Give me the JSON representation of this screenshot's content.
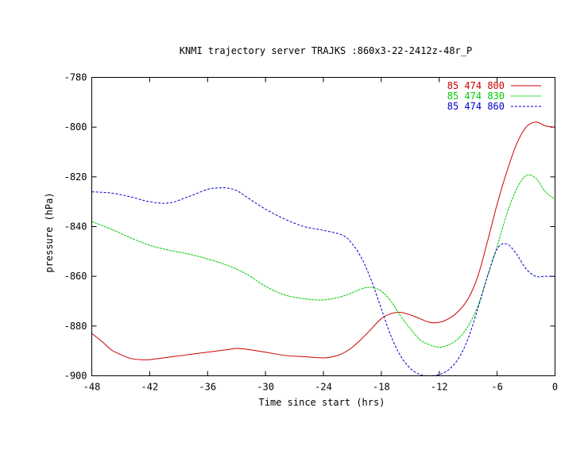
{
  "chart_data": {
    "type": "line",
    "title": "KNMI trajectory server TRAJKS :860x3-22-2412z-48r_P",
    "xlabel": "Time since start (hrs)",
    "ylabel": "pressure (hPa)",
    "xlim": [
      -48,
      0
    ],
    "ylim": [
      -900,
      -780
    ],
    "x_ticks": [
      -48,
      -42,
      -36,
      -30,
      -24,
      -18,
      -12,
      -6,
      0
    ],
    "x_tick_labels": [
      "-48",
      "-42",
      "-36",
      "-30",
      "-24",
      "-18",
      "-12",
      "-6",
      "0"
    ],
    "y_ticks": [
      -780,
      -800,
      -820,
      -840,
      -860,
      -880,
      -900
    ],
    "y_tick_labels": [
      "-780",
      "-800",
      "-820",
      "-840",
      "-860",
      "-880",
      "-900"
    ],
    "grid": false,
    "legend_position": "top-right",
    "series": [
      {
        "name": "85 474 800",
        "color": "#cc0000",
        "dash": "solid",
        "x": [
          -48,
          -47,
          -46,
          -45,
          -44,
          -43,
          -42,
          -40,
          -38,
          -36,
          -34,
          -33,
          -32,
          -30,
          -28,
          -26,
          -24,
          -23,
          -22,
          -21,
          -20,
          -19,
          -18,
          -17,
          -16,
          -15,
          -14,
          -13,
          -12,
          -11,
          -10,
          -9,
          -8,
          -7,
          -6,
          -5,
          -4,
          -3,
          -2,
          -1,
          0
        ],
        "y": [
          -883,
          -886,
          -889.5,
          -891.5,
          -893,
          -893.5,
          -893.5,
          -892.5,
          -891.5,
          -890.5,
          -889.5,
          -889,
          -889.3,
          -890.5,
          -891.8,
          -892.3,
          -892.8,
          -892.3,
          -891,
          -888.5,
          -885,
          -881,
          -877,
          -875,
          -874.5,
          -875.5,
          -877,
          -878.5,
          -878.5,
          -877,
          -874,
          -869,
          -860,
          -846,
          -831,
          -818,
          -807,
          -800,
          -798,
          -799.5,
          -800
        ]
      },
      {
        "name": "85 474 830",
        "color": "#00cc00",
        "dash": "fine",
        "x": [
          -48,
          -46,
          -44,
          -42,
          -40,
          -38,
          -36,
          -34,
          -32,
          -30,
          -28,
          -26,
          -24,
          -22,
          -20,
          -19,
          -18,
          -17,
          -16,
          -15,
          -14,
          -13,
          -12,
          -11,
          -10,
          -9,
          -8,
          -7,
          -6,
          -5,
          -4,
          -3,
          -2,
          -1,
          0
        ],
        "y": [
          -838,
          -841,
          -844.5,
          -847.5,
          -849.5,
          -851,
          -853,
          -855.5,
          -859,
          -864,
          -867.5,
          -869,
          -869.5,
          -868,
          -865,
          -864.5,
          -866,
          -870,
          -876,
          -881,
          -885.5,
          -887.5,
          -888.5,
          -887.5,
          -885,
          -880,
          -872,
          -860,
          -848,
          -835,
          -825,
          -819.5,
          -820.5,
          -826,
          -829
        ]
      },
      {
        "name": "85 474 860",
        "color": "#0000cc",
        "dash": "dash",
        "x": [
          -48,
          -46,
          -44,
          -42,
          -40,
          -38,
          -36,
          -35,
          -34,
          -33,
          -32,
          -30,
          -28,
          -26,
          -24,
          -22,
          -21,
          -20,
          -19,
          -18,
          -17,
          -16,
          -15,
          -14,
          -13,
          -12,
          -11,
          -10,
          -9,
          -8,
          -7,
          -6,
          -5,
          -4,
          -3,
          -2,
          -1,
          0
        ],
        "y": [
          -826,
          -826.5,
          -828,
          -830,
          -830.5,
          -828,
          -825,
          -824.5,
          -824.5,
          -825.5,
          -828,
          -833,
          -837,
          -840,
          -841.5,
          -843.5,
          -847,
          -853,
          -862,
          -873,
          -884,
          -892,
          -897,
          -899.5,
          -900,
          -899.5,
          -897.5,
          -893,
          -885,
          -873,
          -860,
          -849,
          -847,
          -851,
          -857,
          -860,
          -860,
          -860
        ]
      }
    ]
  }
}
